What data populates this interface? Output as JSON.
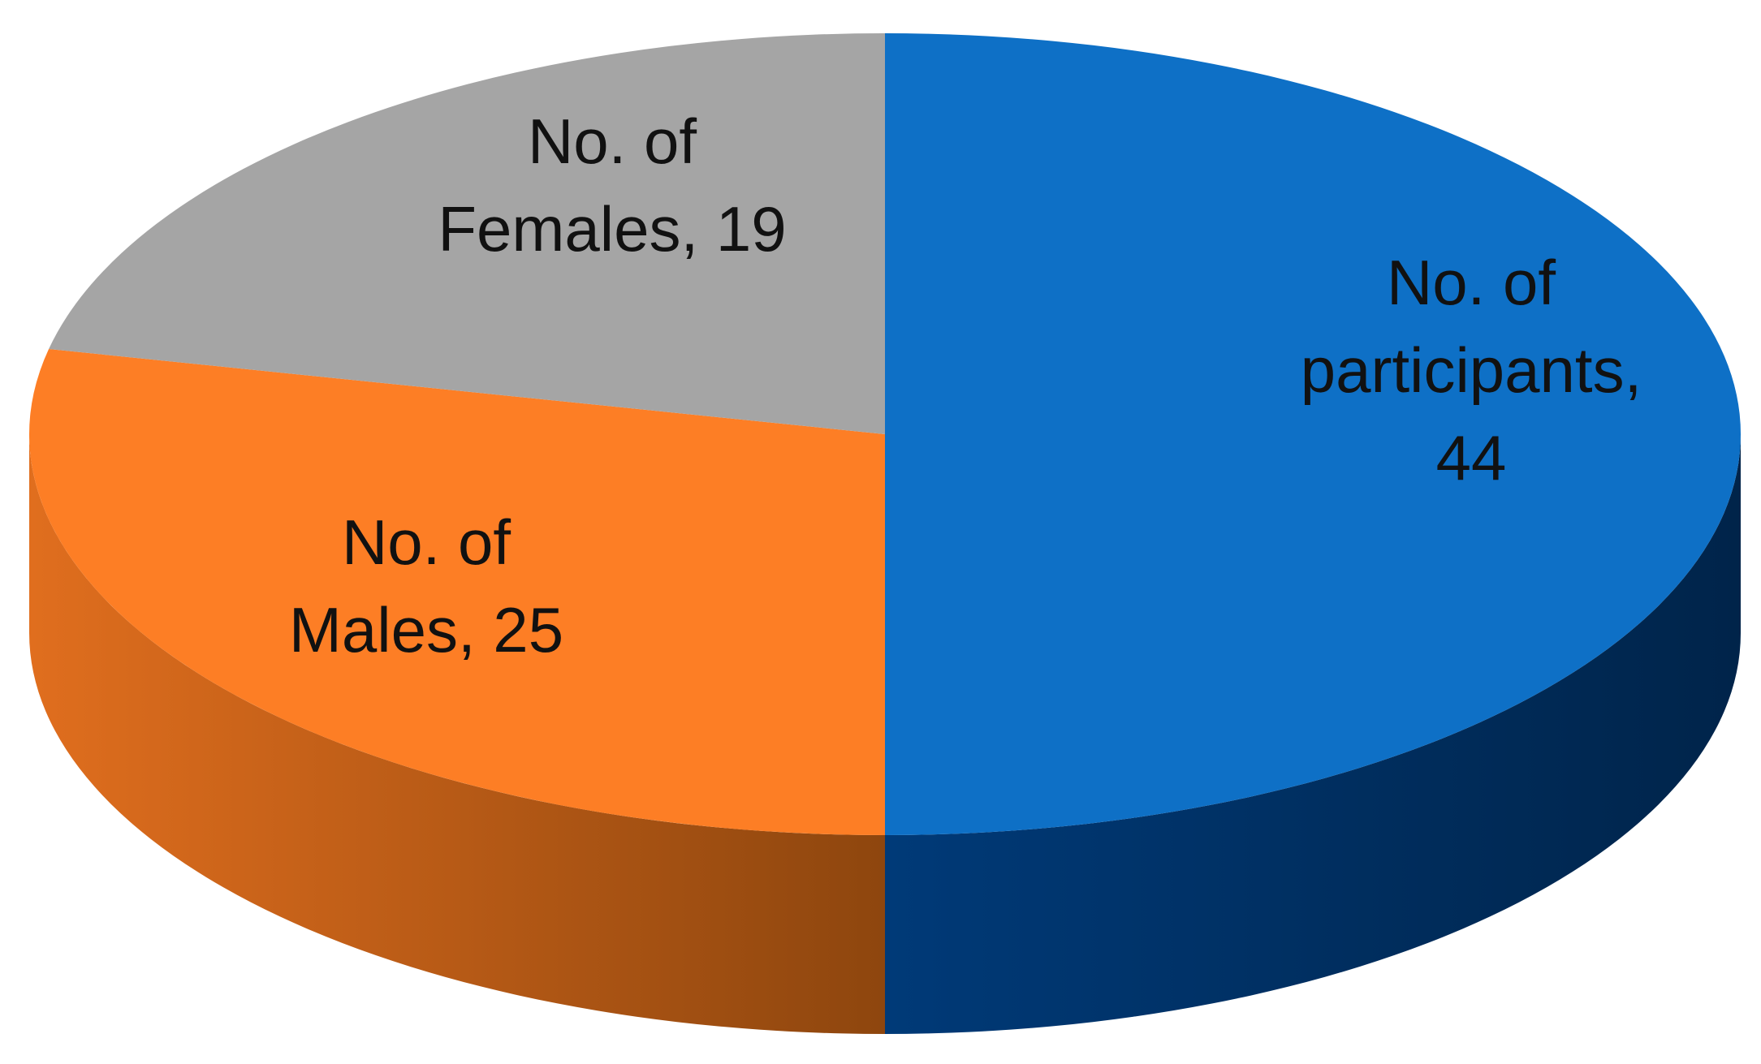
{
  "chart_data": {
    "type": "pie3d",
    "values": [
      44,
      25,
      19
    ],
    "value_labels": [
      "No. of participants, 44",
      "No. of Males, 25",
      "No. of Females, 19"
    ],
    "colors": [
      "#0e70c6",
      "#fd7e25",
      "#a5a5a5"
    ],
    "side_colors": [
      [
        "#003a78",
        "#00244a"
      ],
      [
        "#e06e1e",
        "#8e460e"
      ],
      [
        "#8a8a8a",
        "#6a6a6a"
      ]
    ]
  }
}
